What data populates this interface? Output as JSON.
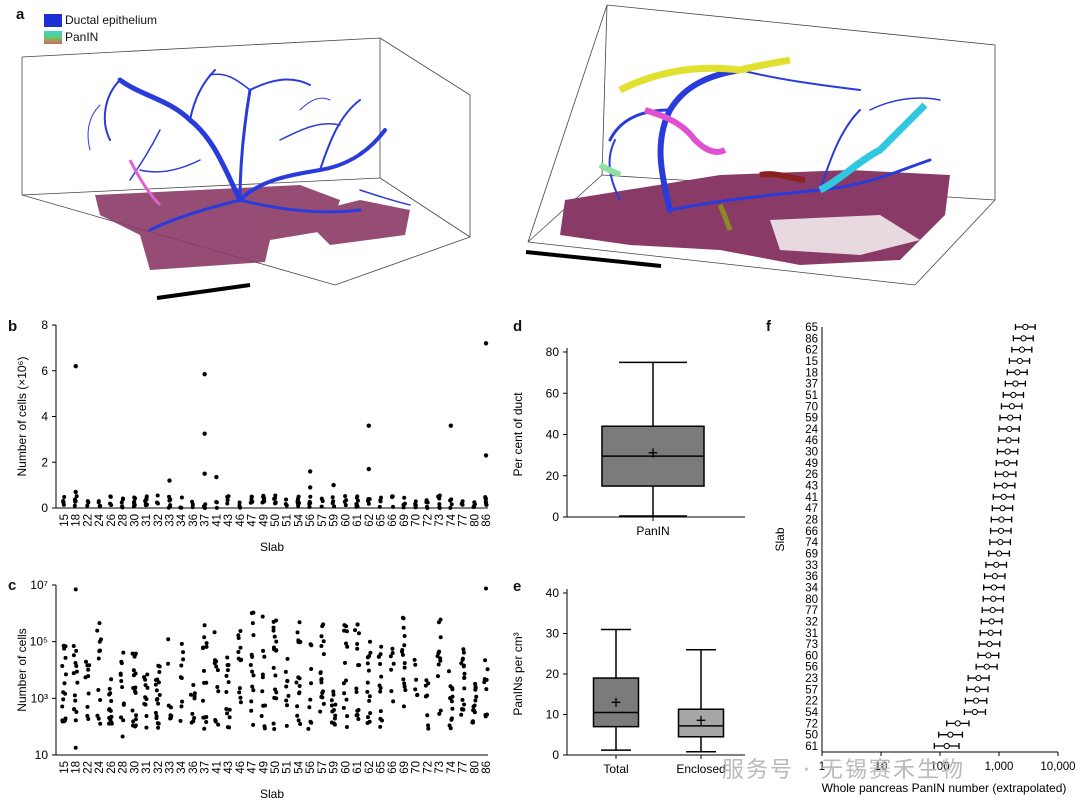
{
  "panel_labels": {
    "a": "a",
    "b": "b",
    "c": "c",
    "d": "d",
    "e": "e",
    "f": "f"
  },
  "legend": {
    "ductal_label": "Ductal epithelium",
    "panin_label": "PanIN",
    "ductal_color": "#1f2fd6",
    "panin_gradient": [
      "#3ad1e0",
      "#66cc66",
      "#e06060"
    ]
  },
  "watermark": "服务号 · 无锡赛禾生物",
  "colors": {
    "duct": "#2a3bdc",
    "tissue": "#8a3a66",
    "box_d": "#7b7b7b",
    "box_e1": "#7b7b7b",
    "box_e2": "#a6a6a6"
  },
  "chart_data": [
    {
      "id": "b",
      "type": "scatter",
      "xlabel": "Slab",
      "ylabel": "Number of cells (×10⁶)",
      "ylim": [
        0,
        8
      ],
      "yticks": [
        "0",
        "2",
        "4",
        "6",
        "8"
      ],
      "categories": [
        "15",
        "18",
        "22",
        "24",
        "26",
        "28",
        "30",
        "31",
        "32",
        "33",
        "34",
        "36",
        "37",
        "41",
        "43",
        "46",
        "47",
        "49",
        "50",
        "51",
        "54",
        "56",
        "57",
        "59",
        "60",
        "61",
        "62",
        "65",
        "66",
        "69",
        "70",
        "72",
        "73",
        "74",
        "77",
        "80",
        "86"
      ],
      "highlights": [
        {
          "slab": "18",
          "values": [
            6.2,
            0.7
          ]
        },
        {
          "slab": "33",
          "values": [
            1.2
          ]
        },
        {
          "slab": "37",
          "values": [
            5.85,
            3.25,
            1.5
          ]
        },
        {
          "slab": "41",
          "values": [
            1.35
          ]
        },
        {
          "slab": "56",
          "values": [
            1.6,
            0.9
          ]
        },
        {
          "slab": "59",
          "values": [
            1.0
          ]
        },
        {
          "slab": "62",
          "values": [
            3.6,
            1.7
          ]
        },
        {
          "slab": "74",
          "values": [
            3.6
          ]
        },
        {
          "slab": "86",
          "values": [
            7.2,
            2.3
          ]
        }
      ]
    },
    {
      "id": "c",
      "type": "scatter",
      "xlabel": "Slab",
      "ylabel": "Number of cells",
      "yscale": "log",
      "ylim": [
        10,
        10000000
      ],
      "yticks": [
        "10",
        "10³",
        "10⁵",
        "10⁷"
      ],
      "categories": [
        "15",
        "18",
        "22",
        "24",
        "26",
        "28",
        "30",
        "31",
        "32",
        "33",
        "34",
        "36",
        "37",
        "41",
        "43",
        "46",
        "47",
        "49",
        "50",
        "51",
        "54",
        "56",
        "57",
        "59",
        "60",
        "61",
        "62",
        "65",
        "66",
        "69",
        "70",
        "72",
        "73",
        "74",
        "77",
        "80",
        "86"
      ]
    },
    {
      "id": "d",
      "type": "box",
      "ylabel": "Per cent of duct",
      "ylim": [
        0,
        80
      ],
      "yticks": [
        "0",
        "20",
        "40",
        "60",
        "80"
      ],
      "categories": [
        "PanIN"
      ],
      "boxes": [
        {
          "min": 0.5,
          "q1": 15,
          "median": 29.5,
          "q3": 44,
          "max": 75,
          "mean": 31
        }
      ]
    },
    {
      "id": "e",
      "type": "box",
      "ylabel": "PanINs per cm³",
      "ylim": [
        0,
        40
      ],
      "yticks": [
        "0",
        "10",
        "20",
        "30",
        "40"
      ],
      "categories": [
        "Total",
        "Enclosed"
      ],
      "boxes": [
        {
          "min": 1.2,
          "q1": 7,
          "median": 10.5,
          "q3": 19,
          "max": 31,
          "mean": 13
        },
        {
          "min": 0.8,
          "q1": 4.5,
          "median": 7.2,
          "q3": 11.3,
          "max": 26,
          "mean": 8.5
        }
      ]
    },
    {
      "id": "f",
      "type": "errorbar",
      "xlabel": "Whole pancreas PanIN number (extrapolated)",
      "ylabel": "Slab",
      "xscale": "log",
      "xlim": [
        1,
        10000
      ],
      "xticks": [
        "1",
        "10",
        "100",
        "1,000",
        "10,000"
      ],
      "categories": [
        "65",
        "86",
        "62",
        "15",
        "18",
        "37",
        "51",
        "70",
        "59",
        "24",
        "46",
        "30",
        "49",
        "26",
        "43",
        "41",
        "47",
        "28",
        "66",
        "74",
        "69",
        "33",
        "36",
        "34",
        "80",
        "77",
        "32",
        "31",
        "73",
        "60",
        "56",
        "23",
        "57",
        "22",
        "54",
        "72",
        "50",
        "61"
      ],
      "points": [
        {
          "slab": "65",
          "center": 2800,
          "lo": 1900,
          "hi": 4100
        },
        {
          "slab": "86",
          "center": 2600,
          "lo": 1750,
          "hi": 3800
        },
        {
          "slab": "62",
          "center": 2450,
          "lo": 1650,
          "hi": 3600
        },
        {
          "slab": "15",
          "center": 2250,
          "lo": 1500,
          "hi": 3300
        },
        {
          "slab": "18",
          "center": 2050,
          "lo": 1380,
          "hi": 3000
        },
        {
          "slab": "37",
          "center": 1900,
          "lo": 1280,
          "hi": 2800
        },
        {
          "slab": "51",
          "center": 1750,
          "lo": 1180,
          "hi": 2600
        },
        {
          "slab": "70",
          "center": 1650,
          "lo": 1100,
          "hi": 2450
        },
        {
          "slab": "59",
          "center": 1550,
          "lo": 1040,
          "hi": 2300
        },
        {
          "slab": "24",
          "center": 1500,
          "lo": 1000,
          "hi": 2200
        },
        {
          "slab": "46",
          "center": 1450,
          "lo": 970,
          "hi": 2150
        },
        {
          "slab": "30",
          "center": 1400,
          "lo": 940,
          "hi": 2080
        },
        {
          "slab": "49",
          "center": 1350,
          "lo": 900,
          "hi": 2000
        },
        {
          "slab": "26",
          "center": 1300,
          "lo": 870,
          "hi": 1930
        },
        {
          "slab": "43",
          "center": 1250,
          "lo": 840,
          "hi": 1860
        },
        {
          "slab": "41",
          "center": 1200,
          "lo": 800,
          "hi": 1780
        },
        {
          "slab": "47",
          "center": 1150,
          "lo": 770,
          "hi": 1700
        },
        {
          "slab": "28",
          "center": 1100,
          "lo": 740,
          "hi": 1640
        },
        {
          "slab": "66",
          "center": 1080,
          "lo": 720,
          "hi": 1600
        },
        {
          "slab": "74",
          "center": 1050,
          "lo": 700,
          "hi": 1560
        },
        {
          "slab": "69",
          "center": 1000,
          "lo": 670,
          "hi": 1500
        },
        {
          "slab": "33",
          "center": 900,
          "lo": 600,
          "hi": 1340
        },
        {
          "slab": "36",
          "center": 850,
          "lo": 570,
          "hi": 1260
        },
        {
          "slab": "34",
          "center": 820,
          "lo": 550,
          "hi": 1220
        },
        {
          "slab": "80",
          "center": 800,
          "lo": 540,
          "hi": 1190
        },
        {
          "slab": "77",
          "center": 780,
          "lo": 520,
          "hi": 1160
        },
        {
          "slab": "32",
          "center": 750,
          "lo": 500,
          "hi": 1120
        },
        {
          "slab": "31",
          "center": 720,
          "lo": 480,
          "hi": 1070
        },
        {
          "slab": "73",
          "center": 690,
          "lo": 460,
          "hi": 1030
        },
        {
          "slab": "60",
          "center": 660,
          "lo": 440,
          "hi": 990
        },
        {
          "slab": "56",
          "center": 620,
          "lo": 410,
          "hi": 930
        },
        {
          "slab": "23",
          "center": 450,
          "lo": 300,
          "hi": 680
        },
        {
          "slab": "57",
          "center": 430,
          "lo": 285,
          "hi": 650
        },
        {
          "slab": "22",
          "center": 410,
          "lo": 270,
          "hi": 620
        },
        {
          "slab": "54",
          "center": 390,
          "lo": 260,
          "hi": 590
        },
        {
          "slab": "72",
          "center": 200,
          "lo": 130,
          "hi": 310
        },
        {
          "slab": "50",
          "center": 150,
          "lo": 95,
          "hi": 240
        },
        {
          "slab": "61",
          "center": 130,
          "lo": 80,
          "hi": 210
        }
      ]
    }
  ]
}
